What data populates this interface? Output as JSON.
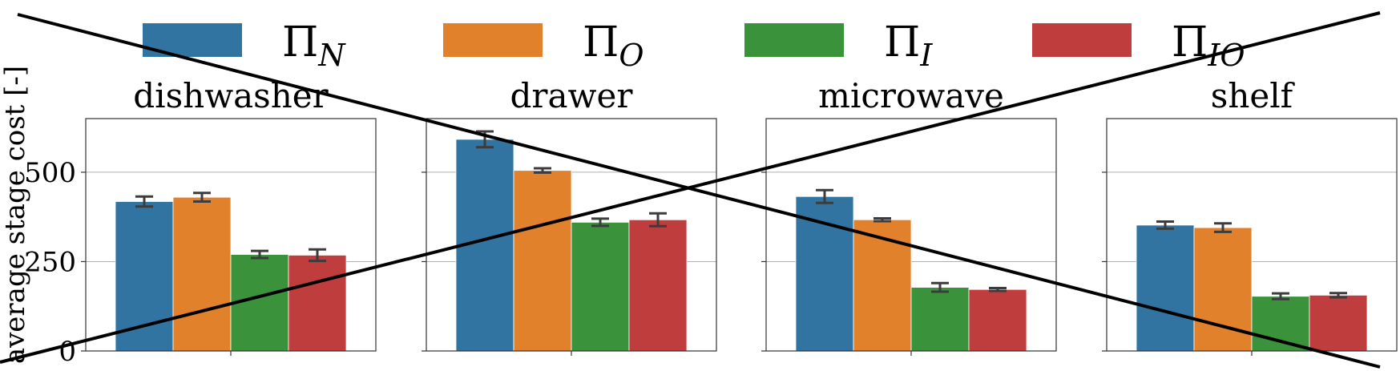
{
  "chart_data": {
    "type": "bar",
    "ylabel": "average stage cost [-]",
    "ylim": [
      0,
      650
    ],
    "yticks": [
      0,
      250,
      500
    ],
    "grid": "horizontal",
    "legend_placement": "top-center",
    "series": [
      {
        "name": "Π",
        "subscript": "N",
        "color": "#3274a1"
      },
      {
        "name": "Π",
        "subscript": "O",
        "color": "#e1812c"
      },
      {
        "name": "Π",
        "subscript": "I",
        "color": "#3a923a"
      },
      {
        "name": "Π",
        "subscript": "IO",
        "color": "#c03d3e"
      }
    ],
    "panels": [
      {
        "title": "dishwasher",
        "values": [
          418,
          430,
          270,
          268
        ],
        "errors": [
          14,
          12,
          10,
          16
        ]
      },
      {
        "title": "drawer",
        "values": [
          592,
          505,
          360,
          367
        ],
        "errors": [
          22,
          6,
          10,
          18
        ]
      },
      {
        "title": "microwave",
        "values": [
          432,
          367,
          178,
          172
        ],
        "errors": [
          18,
          4,
          12,
          4
        ]
      },
      {
        "title": "shelf",
        "values": [
          352,
          345,
          153,
          156
        ],
        "errors": [
          10,
          12,
          8,
          6
        ]
      }
    ]
  }
}
